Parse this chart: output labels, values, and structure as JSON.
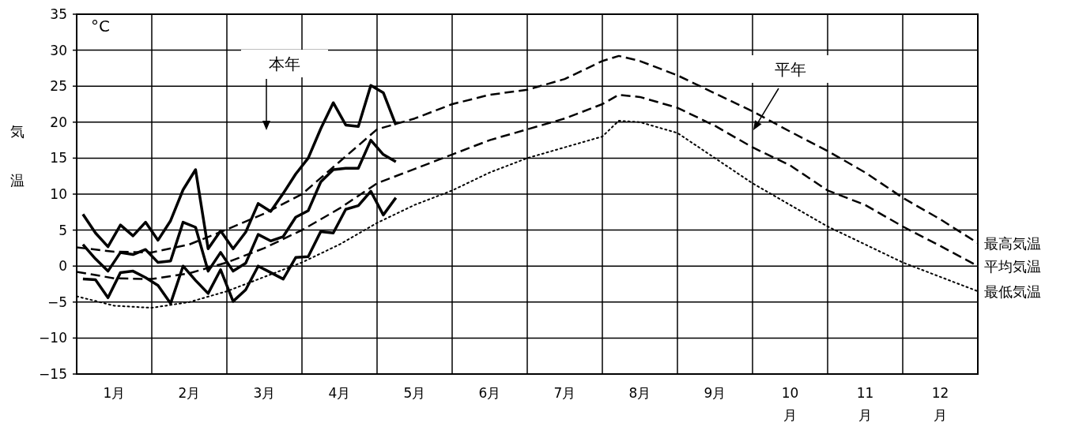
{
  "chart_data": {
    "type": "line",
    "ylabel": "気温",
    "annotations": [
      "°C",
      "本年",
      "平年"
    ],
    "xlim": [
      0,
      12
    ],
    "xticks": [
      {
        "value": 0,
        "label": null
      },
      {
        "value": 0.5,
        "label": "1月"
      },
      {
        "value": 1,
        "label": null
      },
      {
        "value": 1.5,
        "label": "2月"
      },
      {
        "value": 2,
        "label": null
      },
      {
        "value": 2.5,
        "label": "3月"
      },
      {
        "value": 3,
        "label": null
      },
      {
        "value": 3.5,
        "label": "4月"
      },
      {
        "value": 4,
        "label": null
      },
      {
        "value": 4.5,
        "label": "5月"
      },
      {
        "value": 5,
        "label": null
      },
      {
        "value": 5.5,
        "label": "6月"
      },
      {
        "value": 6,
        "label": null
      },
      {
        "value": 6.5,
        "label": "7月"
      },
      {
        "value": 7,
        "label": null
      },
      {
        "value": 7.5,
        "label": "8月"
      },
      {
        "value": 8,
        "label": null
      },
      {
        "value": 8.5,
        "label": "9月"
      },
      {
        "value": 9,
        "label": null
      },
      {
        "value": 9.5,
        "label": "10月"
      },
      {
        "value": 10,
        "label": null
      },
      {
        "value": 10.5,
        "label": "11月"
      },
      {
        "value": 11,
        "label": null
      },
      {
        "value": 11.5,
        "label": "12月"
      },
      {
        "value": 12,
        "label": null
      }
    ],
    "ylim": [
      -15,
      35
    ],
    "yticks": [
      -15,
      -10,
      -5,
      0,
      5,
      10,
      15,
      20,
      25,
      30,
      35
    ],
    "grid": true,
    "legend": false,
    "marker": "none",
    "series": [
      {
        "color": "#000000",
        "line_style": "solid",
        "x": [
          0.083,
          0.25,
          0.417,
          0.583,
          0.75,
          0.917,
          1.083,
          1.25,
          1.417,
          1.583,
          1.75,
          1.917,
          2.083,
          2.25,
          2.417,
          2.583,
          2.75,
          2.917,
          3.083,
          3.25,
          3.417,
          3.583,
          3.75,
          3.917,
          4.083,
          4.25
        ],
        "values": [
          7.2,
          4.6,
          2.7,
          5.7,
          4.2,
          6.1,
          3.6,
          6.3,
          10.6,
          13.4,
          2.4,
          4.9,
          2.4,
          4.7,
          8.7,
          7.6,
          10.1,
          12.8,
          15.0,
          19.1,
          22.7,
          19.6,
          19.4,
          25.1,
          24.1,
          19.6
        ]
      },
      {
        "color": "#000000",
        "line_style": "solid",
        "x": [
          0.083,
          0.25,
          0.417,
          0.583,
          0.75,
          0.917,
          1.083,
          1.25,
          1.417,
          1.583,
          1.75,
          1.917,
          2.083,
          2.25,
          2.417,
          2.583,
          2.75,
          2.917,
          3.083,
          3.25,
          3.417,
          3.583,
          3.75,
          3.917,
          4.083,
          4.25
        ],
        "values": [
          3.0,
          1.0,
          -0.7,
          1.9,
          1.6,
          2.3,
          0.5,
          0.7,
          6.1,
          5.4,
          -0.7,
          1.9,
          -0.7,
          0.4,
          4.4,
          3.5,
          4.1,
          6.8,
          7.7,
          11.7,
          13.4,
          13.6,
          13.6,
          17.5,
          15.5,
          14.5
        ]
      },
      {
        "color": "#000000",
        "line_style": "solid",
        "x": [
          0.083,
          0.25,
          0.417,
          0.583,
          0.75,
          0.917,
          1.083,
          1.25,
          1.417,
          1.583,
          1.75,
          1.917,
          2.083,
          2.25,
          2.417,
          2.583,
          2.75,
          2.917,
          3.083,
          3.25,
          3.417,
          3.583,
          3.75,
          3.917,
          4.083,
          4.25
        ],
        "values": [
          -1.8,
          -1.9,
          -4.4,
          -0.9,
          -0.7,
          -1.6,
          -2.7,
          -5.2,
          0,
          -2.0,
          -3.8,
          -0.5,
          -4.9,
          -3.3,
          0,
          -0.9,
          -1.8,
          1.2,
          1.3,
          4.8,
          4.6,
          7.9,
          8.4,
          10.4,
          7.1,
          9.5
        ]
      },
      {
        "name": "最高気温",
        "color": "#000000",
        "line_style": "dashed",
        "x": [
          0,
          0.5,
          1,
          1.5,
          2,
          2.5,
          3,
          3.5,
          4,
          4.5,
          5,
          5.5,
          6,
          6.5,
          7,
          7.22,
          7.5,
          8,
          8.5,
          9,
          9.5,
          10,
          10.5,
          11,
          11.5,
          12
        ],
        "values": [
          2.6,
          2.0,
          1.9,
          3.0,
          5.1,
          7.3,
          10,
          14.5,
          19,
          20.5,
          22.5,
          23.8,
          24.5,
          26,
          28.5,
          29.2,
          28.5,
          26.5,
          24,
          21.5,
          18.7,
          16,
          13,
          9.5,
          6.5,
          3.2
        ]
      },
      {
        "name": "平均気温",
        "color": "#000000",
        "line_style": "dashed",
        "x": [
          0,
          0.5,
          1,
          1.5,
          2,
          2.5,
          3,
          3.5,
          4,
          4.5,
          5,
          5.5,
          6,
          6.5,
          7,
          7.22,
          7.5,
          8,
          8.5,
          9,
          9.5,
          10,
          10.5,
          11,
          11.5,
          12
        ],
        "values": [
          -0.8,
          -1.7,
          -1.8,
          -1.0,
          0.5,
          2.5,
          5.0,
          8,
          11.5,
          13.5,
          15.5,
          17.5,
          19,
          20.5,
          22.5,
          23.8,
          23.5,
          22,
          19.5,
          16.5,
          14,
          10.5,
          8.5,
          5.5,
          2.8,
          0
        ]
      },
      {
        "name": "最低気温",
        "color": "#000000",
        "line_style": "dotted",
        "x": [
          0,
          0.5,
          1,
          1.5,
          2,
          2.5,
          3,
          3.5,
          4,
          4.5,
          5,
          5.5,
          6,
          6.5,
          7,
          7.22,
          7.5,
          8,
          8.5,
          9,
          9.5,
          10,
          10.5,
          11,
          11.5,
          12
        ],
        "values": [
          -4.2,
          -5.5,
          -5.8,
          -5,
          -3.5,
          -1.5,
          0.5,
          3,
          6,
          8.5,
          10.5,
          13,
          15,
          16.5,
          18,
          20.2,
          20,
          18.5,
          15,
          11.5,
          8.5,
          5.5,
          3,
          0.5,
          -1.5,
          -3.5
        ]
      }
    ]
  }
}
